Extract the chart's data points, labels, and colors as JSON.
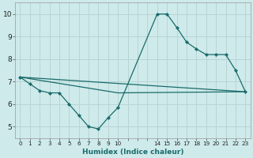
{
  "xlabel": "Humidex (Indice chaleur)",
  "background_color": "#ceeaea",
  "grid_color": "#b8d4d4",
  "line_color": "#1a6b6b",
  "tick_labels": [
    "0",
    "1",
    "2",
    "3",
    "4",
    "5",
    "6",
    "7",
    "8",
    "9",
    "10",
    "",
    "",
    "",
    "14",
    "15",
    "16",
    "17",
    "18",
    "19",
    "20",
    "21",
    "22",
    "23"
  ],
  "ylim": [
    4.5,
    10.5
  ],
  "yticks": [
    5,
    6,
    7,
    8,
    9,
    10
  ],
  "line1_xi": [
    0,
    1,
    2,
    3,
    4,
    5,
    6,
    7,
    8,
    9,
    10,
    14,
    15,
    16,
    17,
    18,
    19,
    20,
    21,
    22,
    23
  ],
  "line1_y": [
    7.2,
    6.9,
    6.6,
    6.5,
    6.5,
    6.0,
    5.5,
    5.0,
    4.9,
    5.4,
    5.85,
    10.0,
    10.0,
    9.4,
    8.75,
    8.45,
    8.2,
    8.2,
    8.2,
    7.5,
    6.55
  ],
  "line2_xi": [
    0,
    23
  ],
  "line2_y": [
    7.2,
    6.55
  ],
  "line3_xi": [
    0,
    10,
    23
  ],
  "line3_y": [
    7.2,
    6.5,
    6.55
  ]
}
